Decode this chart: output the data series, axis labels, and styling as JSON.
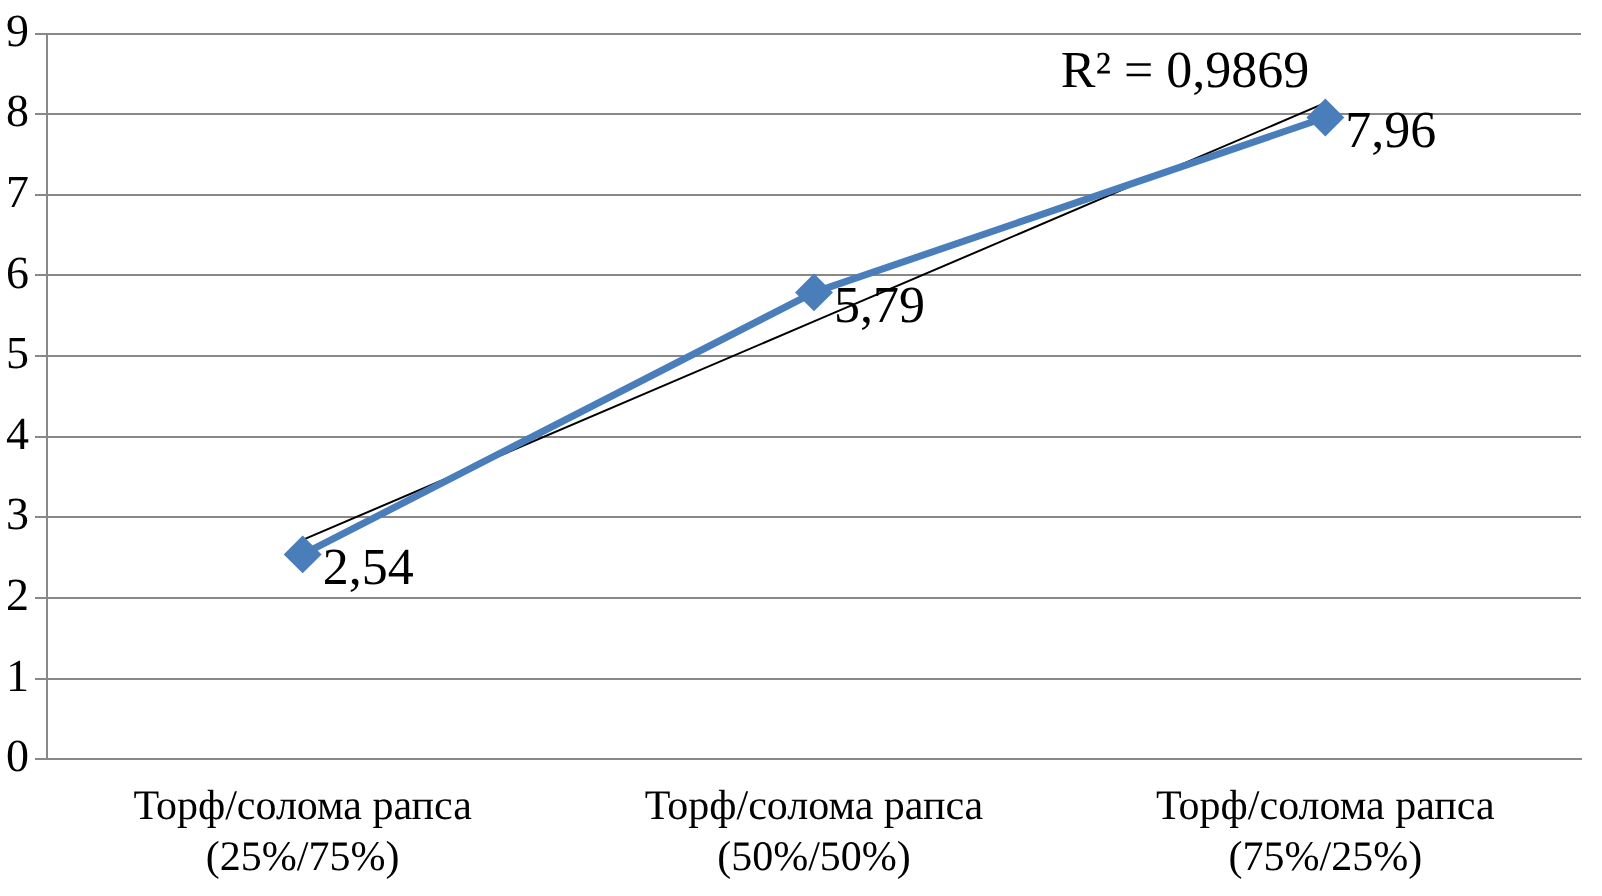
{
  "chart_data": {
    "type": "line",
    "categories": [
      "Торф/солома рапса (25%/75%)",
      "Торф/солома рапса (50%/50%)",
      "Торф/солома рапса (75%/25%)"
    ],
    "series": [
      {
        "color": "#4a7ebb",
        "values": [
          2.54,
          5.79,
          7.96
        ],
        "value_labels": [
          "2,54",
          "5,79",
          "7,96"
        ],
        "marker": "diamond"
      },
      {
        "color": "#000000",
        "values": [
          2.72,
          5.43,
          8.14
        ],
        "marker": "none"
      }
    ],
    "ylim": [
      0,
      9
    ],
    "yticks": [
      0,
      1,
      2,
      3,
      4,
      5,
      6,
      7,
      8,
      9
    ],
    "grid": "y",
    "legend": false,
    "annotations": [
      {
        "text": "R² = 0,9869",
        "x": "Торф/солома рапса (75%/25%)",
        "y": 8.14
      }
    ]
  }
}
